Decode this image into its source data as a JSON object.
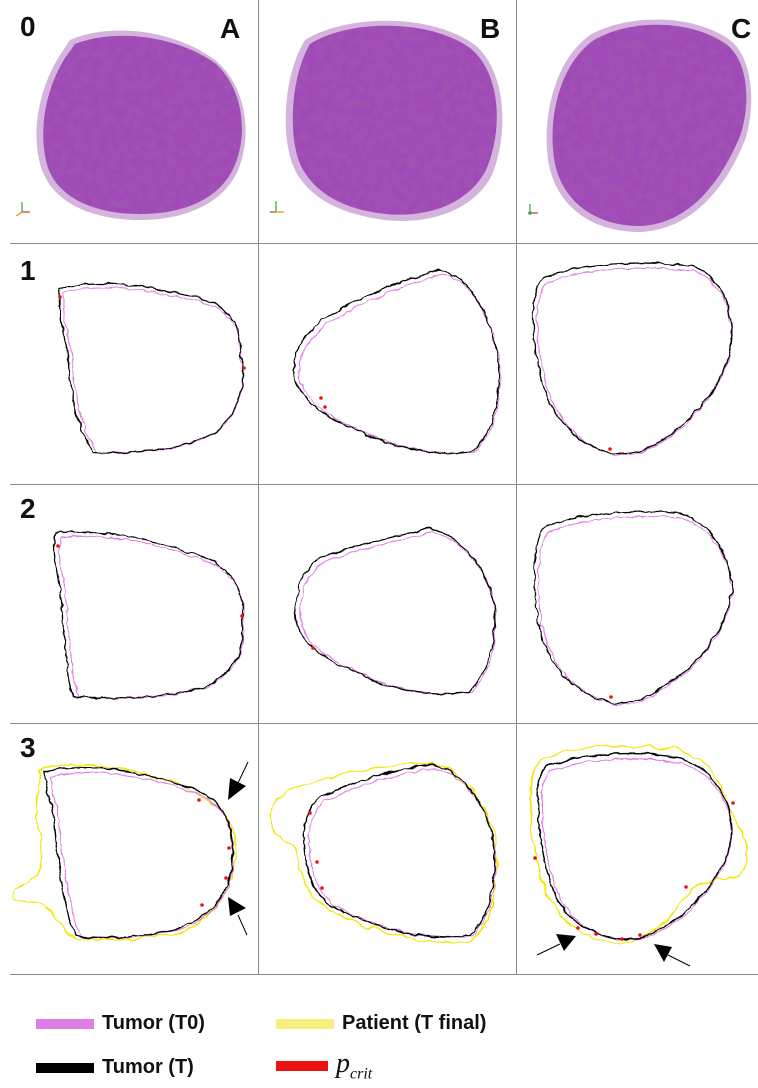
{
  "rows": [
    {
      "label": "0"
    },
    {
      "label": "1"
    },
    {
      "label": "2"
    },
    {
      "label": "3"
    }
  ],
  "columns": [
    {
      "label": "A"
    },
    {
      "label": "B"
    },
    {
      "label": "C"
    }
  ],
  "legend": {
    "tumor_t0": {
      "label": "Tumor (T0)",
      "color": "#e07ee6"
    },
    "tumor_t": {
      "label": "Tumor (T)",
      "color": "#000000"
    },
    "patient": {
      "label": "Patient (T final)",
      "color": "#f5f07a"
    },
    "pcrit": {
      "symbol": "p",
      "subscript": "crit",
      "color": "#ee1111"
    }
  },
  "colors": {
    "tumor_3d": "#a048b8",
    "tumor_3d_shadow": "#7e3092",
    "halo": "#c69ad2",
    "grid": "#8a8a8a",
    "patient_line": "#f2e600",
    "pink_line": "#e07ee6",
    "black_line": "#000000",
    "red_dot": "#ee1111"
  }
}
